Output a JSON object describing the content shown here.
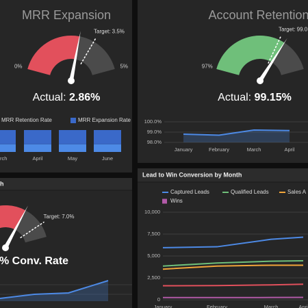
{
  "panels": [
    {
      "title": "MRR Expansion",
      "gauge": {
        "min": 0,
        "max": 5,
        "value": 2.86,
        "target": 3.5,
        "min_label": "0%",
        "max_label": "5%",
        "target_label": "Target: 3.5%",
        "actual_label": "Actual:",
        "value_label": "2.86%",
        "color": "#e2505c"
      },
      "chart": {
        "type": "bar",
        "categories": [
          "rch",
          "April",
          "May",
          "June"
        ],
        "ylim": [
          0,
          100
        ],
        "series": [
          {
            "name": "MRR Retention Rate",
            "color": "#4d8ae6",
            "values": [
              35,
              35,
              35,
              35
            ]
          },
          {
            "name": "MRR Expansion Rate",
            "color": "#3a69c9",
            "values": [
              65,
              65,
              65,
              65
            ]
          }
        ]
      }
    },
    {
      "title": "Account Retention",
      "gauge": {
        "min": 97,
        "max": 100,
        "value": 99.15,
        "target": 99.0,
        "min_label": "97%",
        "target_label": "Target: 99.0",
        "actual_label": "Actual:",
        "value_label": "99.15%",
        "color": "#6fbf7a"
      },
      "chart": {
        "type": "line",
        "categories": [
          "January",
          "February",
          "March",
          "April"
        ],
        "ylim": [
          98,
          100
        ],
        "yticks": [
          {
            "value": 100,
            "label": "100.0%"
          },
          {
            "value": 99,
            "label": "99.0%"
          },
          {
            "value": 98,
            "label": "98.0%"
          }
        ],
        "series": [
          {
            "color": "#4d8ae6",
            "values": [
              98.8,
              98.7,
              99.2,
              99.15
            ]
          }
        ]
      }
    },
    {
      "title": "h",
      "gauge": {
        "min": 0,
        "max": 8,
        "value": 5.5,
        "target": 7.0,
        "target_label": "Target: 7.0%",
        "value_label": "% Conv. Rate",
        "color": "#e2505c"
      },
      "chart": {
        "type": "line",
        "ylim": [
          0,
          1
        ],
        "series": [
          {
            "color": "#4d8ae6",
            "values": [
              0.1,
              0.25,
              0.3,
              0.75
            ]
          }
        ]
      }
    },
    {
      "title": "Lead to Win Conversion by Month",
      "chart": {
        "type": "line",
        "categories": [
          "January",
          "February",
          "March",
          "Apri"
        ],
        "ylim": [
          0,
          10000
        ],
        "yticks": [
          0,
          {
            "value": 2500,
            "label": "2,500"
          },
          {
            "value": 5000,
            "label": "5,000"
          },
          {
            "value": 7500,
            "label": "7,500"
          },
          {
            "value": 10000,
            "label": "10,000"
          }
        ],
        "series": [
          {
            "name": "Captured Leads",
            "color": "#4d8ae6",
            "values": [
              5950,
              6050,
              6900,
              7150
            ]
          },
          {
            "name": "Qualified Leads",
            "color": "#6fbf7a",
            "values": [
              3850,
              4200,
              4400,
              4450
            ]
          },
          {
            "name": "Sales A",
            "color": "#f2a53a",
            "values": [
              3500,
              3850,
              3950,
              3950
            ]
          },
          {
            "color": "#e2505c",
            "values": [
              1600,
              1620,
              1700,
              1780
            ]
          },
          {
            "name": "Wins",
            "color": "#b25aa8",
            "values": [
              250,
              250,
              260,
              270
            ]
          }
        ]
      }
    }
  ]
}
